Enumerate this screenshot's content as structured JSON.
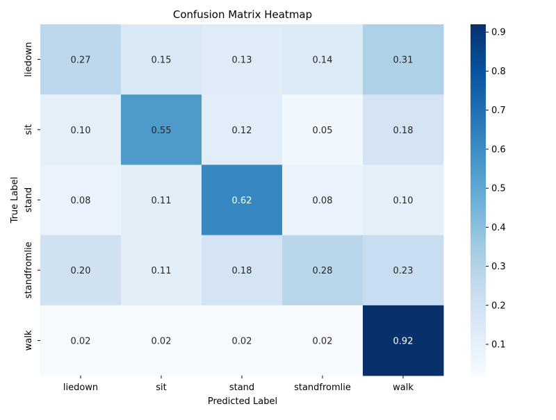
{
  "chart_data": {
    "type": "heatmap",
    "title": "Confusion Matrix Heatmap",
    "xlabel": "Predicted Label",
    "ylabel": "True Label",
    "x_categories": [
      "liedown",
      "sit",
      "stand",
      "standfromlie",
      "walk"
    ],
    "y_categories": [
      "liedown",
      "sit",
      "stand",
      "standfromlie",
      "walk"
    ],
    "values": [
      [
        0.27,
        0.15,
        0.13,
        0.14,
        0.31
      ],
      [
        0.1,
        0.55,
        0.12,
        0.05,
        0.18
      ],
      [
        0.08,
        0.11,
        0.62,
        0.08,
        0.1
      ],
      [
        0.2,
        0.11,
        0.18,
        0.28,
        0.23
      ],
      [
        0.02,
        0.02,
        0.02,
        0.02,
        0.92
      ]
    ],
    "colormap": "Blues",
    "colorbar": {
      "range": [
        0.02,
        0.92
      ],
      "ticks": [
        "0.1",
        "0.2",
        "0.3",
        "0.4",
        "0.5",
        "0.6",
        "0.7",
        "0.8",
        "0.9"
      ]
    }
  }
}
